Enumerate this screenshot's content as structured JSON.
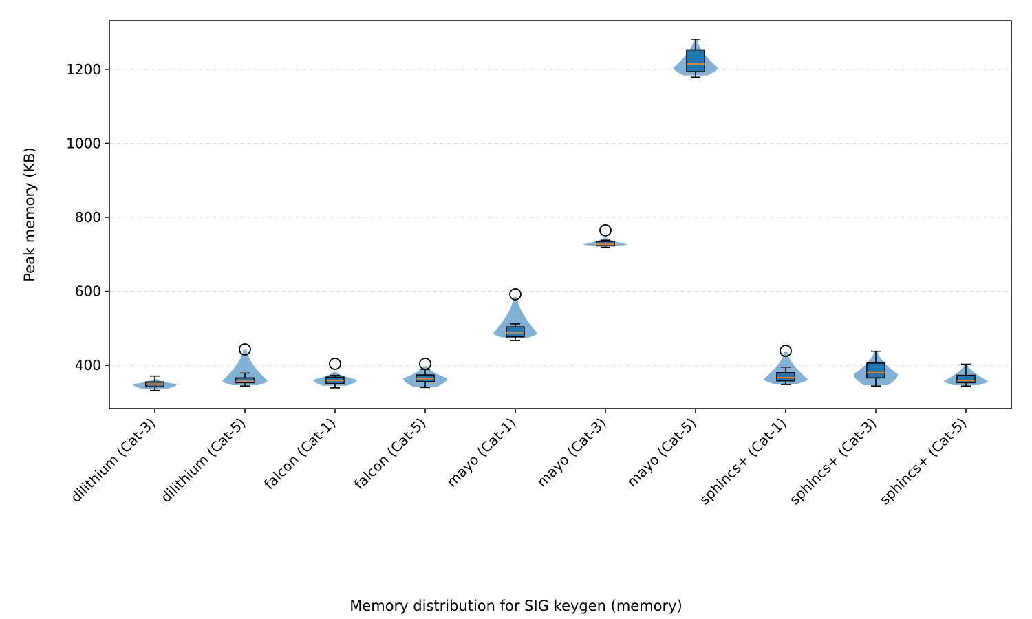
{
  "chart_data": {
    "type": "violin",
    "title": "",
    "xlabel": "",
    "ylabel": "Peak memory (KB)",
    "caption": "Memory distribution for SIG keygen (memory)",
    "ylim": [
      283,
      1332
    ],
    "yticks": [
      400,
      600,
      800,
      1000,
      1200
    ],
    "grid": "y-dashed",
    "colors": {
      "violin": "#7bafd4",
      "box": "#1f77b4",
      "median": "#ff7f0e",
      "edge": "#000000",
      "grid": "#e0e0e0"
    },
    "categories": [
      "dilithium (Cat-3)",
      "dilithium (Cat-5)",
      "falcon (Cat-1)",
      "falcon (Cat-5)",
      "mayo (Cat-1)",
      "mayo (Cat-3)",
      "mayo (Cat-5)",
      "sphincs+ (Cat-1)",
      "sphincs+ (Cat-3)",
      "sphincs+ (Cat-5)"
    ],
    "series": [
      {
        "q1": 342,
        "median": 349,
        "q3": 355,
        "whisker_low": 332,
        "whisker_high": 371,
        "outliers": [],
        "vmin": 336,
        "vmax": 363,
        "vpeak": 349,
        "vwidth": 32
      },
      {
        "q1": 353,
        "median": 357,
        "q3": 366,
        "whisker_low": 344,
        "whisker_high": 379,
        "outliers": [
          443
        ],
        "vmin": 346,
        "vmax": 442,
        "vpeak": 358,
        "vwidth": 33
      },
      {
        "q1": 350,
        "median": 359,
        "q3": 368,
        "whisker_low": 339,
        "whisker_high": 373,
        "outliers": [
          404
        ],
        "vmin": 345,
        "vmax": 382,
        "vpeak": 361,
        "vwidth": 32
      },
      {
        "q1": 356,
        "median": 364,
        "q3": 374,
        "whisker_low": 340,
        "whisker_high": 389,
        "outliers": [
          404
        ],
        "vmin": 342,
        "vmax": 398,
        "vpeak": 365,
        "vwidth": 32
      },
      {
        "q1": 477,
        "median": 488,
        "q3": 504,
        "whisker_low": 467,
        "whisker_high": 512,
        "outliers": [
          592
        ],
        "vmin": 474,
        "vmax": 585,
        "vpeak": 487,
        "vwidth": 32
      },
      {
        "q1": 723,
        "median": 727,
        "q3": 735,
        "whisker_low": 719,
        "whisker_high": 738,
        "outliers": [
          765
        ],
        "vmin": 723,
        "vmax": 745,
        "vpeak": 727,
        "vwidth": 32
      },
      {
        "q1": 1194,
        "median": 1215,
        "q3": 1253,
        "whisker_low": 1179,
        "whisker_high": 1282,
        "outliers": [],
        "vmin": 1184,
        "vmax": 1282,
        "vpeak": 1205,
        "vwidth": 32
      },
      {
        "q1": 358,
        "median": 367,
        "q3": 380,
        "whisker_low": 348,
        "whisker_high": 395,
        "outliers": [
          439
        ],
        "vmin": 350,
        "vmax": 436,
        "vpeak": 363,
        "vwidth": 32
      },
      {
        "q1": 366,
        "median": 380,
        "q3": 406,
        "whisker_low": 344,
        "whisker_high": 438,
        "outliers": [],
        "vmin": 346,
        "vmax": 438,
        "vpeak": 376,
        "vwidth": 32
      },
      {
        "q1": 353,
        "median": 359,
        "q3": 373,
        "whisker_low": 344,
        "whisker_high": 403,
        "outliers": [],
        "vmin": 346,
        "vmax": 402,
        "vpeak": 358,
        "vwidth": 32
      }
    ]
  }
}
